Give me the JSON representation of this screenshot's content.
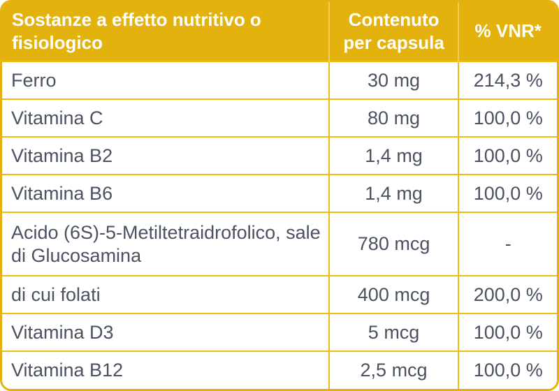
{
  "table": {
    "columns": [
      {
        "label": "Sostanze a effetto nutritivo o fisiologico"
      },
      {
        "label": "Contenuto per capsula"
      },
      {
        "label": "% VNR*"
      }
    ],
    "rows": [
      {
        "name": "Ferro",
        "content": "30 mg",
        "vnr": "214,3 %"
      },
      {
        "name": "Vitamina C",
        "content": "80 mg",
        "vnr": "100,0 %"
      },
      {
        "name": "Vitamina B2",
        "content": "1,4 mg",
        "vnr": "100,0 %"
      },
      {
        "name": "Vitamina B6",
        "content": "1,4 mg",
        "vnr": "100,0 %"
      },
      {
        "name": "Acido (6S)-5-Metiltetraidrofolico, sale di Glucosamina",
        "content": "780 mcg",
        "vnr": "-"
      },
      {
        "name": "di cui folati",
        "content": "400 mcg",
        "vnr": "200,0 %"
      },
      {
        "name": "Vitamina D3",
        "content": "5 mcg",
        "vnr": "100,0 %"
      },
      {
        "name": "Vitamina B12",
        "content": "2,5 mcg",
        "vnr": "100,0 %"
      }
    ],
    "colors": {
      "gold": "#E3B20D",
      "gridline_gold": "#EDBE09",
      "header_separator": "#F2CE55",
      "header_text": "#FFFFFF",
      "body_text": "#4A5161"
    }
  }
}
